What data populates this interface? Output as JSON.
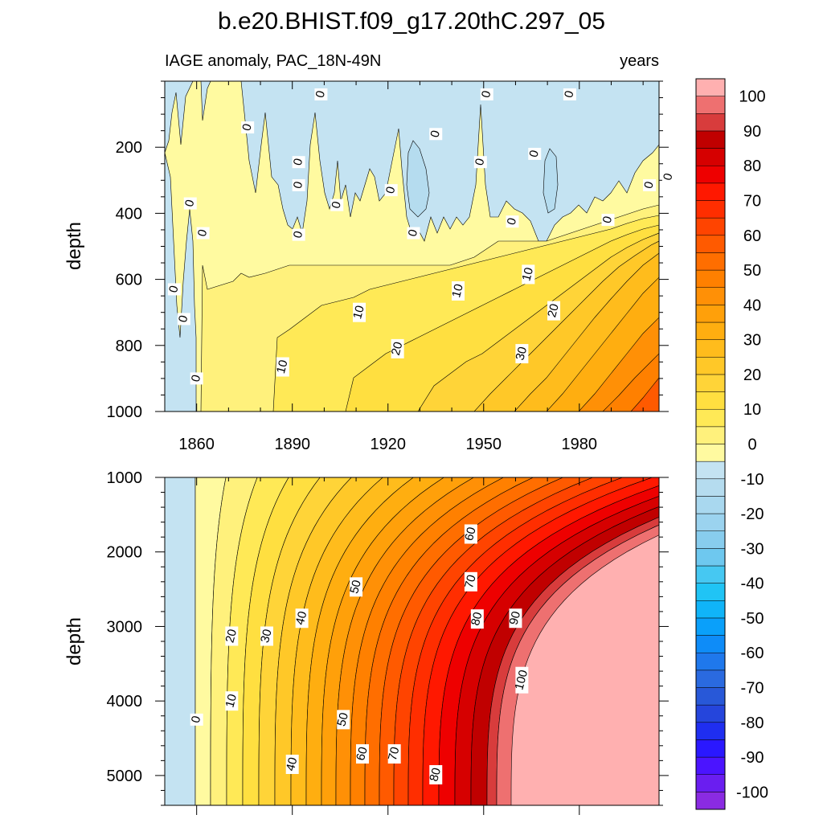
{
  "chart_data": [
    {
      "type": "heatmap",
      "title": "b.e20.BHIST.f09_g17.20thC.297_05",
      "left_subtitle": "IAGE anomaly, PAC_18N-49N",
      "right_subtitle": "years",
      "xlabel": "",
      "ylabel": "depth",
      "x_ticks": [
        1860,
        1890,
        1920,
        1950,
        1980
      ],
      "y_ticks": [
        200,
        400,
        600,
        800,
        1000
      ],
      "xlim": [
        1850,
        2005
      ],
      "ylim": [
        0,
        1000
      ],
      "y_inverted": true,
      "contour_labels": [
        {
          "text": "0",
          "x": 1876,
          "y": 140
        },
        {
          "text": "0",
          "x": 1899,
          "y": 40
        },
        {
          "text": "0",
          "x": 1951,
          "y": 40
        },
        {
          "text": "0",
          "x": 1977,
          "y": 40
        },
        {
          "text": "0",
          "x": 1935,
          "y": 160
        },
        {
          "text": "0",
          "x": 1966,
          "y": 220
        },
        {
          "text": "0",
          "x": 1892,
          "y": 245
        },
        {
          "text": "0",
          "x": 1892,
          "y": 315
        },
        {
          "text": "0",
          "x": 1949,
          "y": 245
        },
        {
          "text": "0",
          "x": 2008,
          "y": 290
        },
        {
          "text": "0",
          "x": 2002,
          "y": 315
        },
        {
          "text": "0",
          "x": 1858,
          "y": 370
        },
        {
          "text": "0",
          "x": 1904,
          "y": 375
        },
        {
          "text": "0",
          "x": 1921,
          "y": 330
        },
        {
          "text": "0",
          "x": 1862,
          "y": 460
        },
        {
          "text": "0",
          "x": 1892,
          "y": 465
        },
        {
          "text": "0",
          "x": 1928,
          "y": 460
        },
        {
          "text": "0",
          "x": 1959,
          "y": 425
        },
        {
          "text": "0",
          "x": 1989,
          "y": 420
        },
        {
          "text": "0",
          "x": 1853,
          "y": 630
        },
        {
          "text": "0",
          "x": 1856,
          "y": 720
        },
        {
          "text": "0",
          "x": 1860,
          "y": 900
        },
        {
          "text": "10",
          "x": 1911,
          "y": 700
        },
        {
          "text": "10",
          "x": 1942,
          "y": 635
        },
        {
          "text": "10",
          "x": 1964,
          "y": 585
        },
        {
          "text": "10",
          "x": 1887,
          "y": 865
        },
        {
          "text": "20",
          "x": 1923,
          "y": 810
        },
        {
          "text": "20",
          "x": 1972,
          "y": 695
        },
        {
          "text": "30",
          "x": 1962,
          "y": 825
        }
      ]
    },
    {
      "type": "heatmap",
      "ylabel": "depth",
      "y_ticks": [
        1000,
        2000,
        3000,
        4000,
        5000
      ],
      "xlim": [
        1850,
        2005
      ],
      "ylim": [
        1000,
        5400
      ],
      "y_inverted": true,
      "contour_labels": [
        {
          "text": "0",
          "x": 1860,
          "y": 4250
        },
        {
          "text": "10",
          "x": 1871,
          "y": 4000
        },
        {
          "text": "20",
          "x": 1871,
          "y": 3130
        },
        {
          "text": "30",
          "x": 1882,
          "y": 3130
        },
        {
          "text": "40",
          "x": 1893,
          "y": 2890
        },
        {
          "text": "50",
          "x": 1910,
          "y": 2470
        },
        {
          "text": "60",
          "x": 1946,
          "y": 1760
        },
        {
          "text": "70",
          "x": 1946,
          "y": 2400
        },
        {
          "text": "80",
          "x": 1948,
          "y": 2900
        },
        {
          "text": "90",
          "x": 1960,
          "y": 2890
        },
        {
          "text": "100",
          "x": 1962,
          "y": 3720
        },
        {
          "text": "50",
          "x": 1906,
          "y": 4250
        },
        {
          "text": "40",
          "x": 1890,
          "y": 4850
        },
        {
          "text": "60",
          "x": 1912,
          "y": 4710
        },
        {
          "text": "70",
          "x": 1922,
          "y": 4710
        },
        {
          "text": "80",
          "x": 1935,
          "y": 4990
        }
      ]
    },
    {
      "type": "colorbar",
      "levels": [
        -100,
        -90,
        -80,
        -70,
        -60,
        -50,
        -40,
        -30,
        -20,
        -10,
        0,
        10,
        20,
        30,
        40,
        50,
        60,
        70,
        80,
        90,
        100
      ],
      "tick_labels": [
        "-100",
        "-90",
        "-80",
        "-70",
        "-60",
        "-50",
        "-40",
        "-30",
        "-20",
        "-10",
        "0",
        "10",
        "20",
        "30",
        "40",
        "50",
        "60",
        "70",
        "80",
        "90",
        "100"
      ],
      "colors_bottom_to_top": [
        "#8a2be2",
        "#6a1ef0",
        "#4b14ff",
        "#2a18ff",
        "#1f2ef0",
        "#2545dc",
        "#2858d8",
        "#2a6ae0",
        "#1f78ec",
        "#0e8cf8",
        "#0aa0fa",
        "#10b4f8",
        "#20c4f5",
        "#46c8f2",
        "#6ec8ef",
        "#88cdee",
        "#9bd3ef",
        "#a9d8ef",
        "#b5dcef",
        "#c4e3f2",
        "#fffaa0",
        "#fff17c",
        "#ffe956",
        "#ffdf40",
        "#ffd438",
        "#ffc828",
        "#ffbc1c",
        "#ffae10",
        "#ffa00a",
        "#ff9006",
        "#ff8000",
        "#ff6e00",
        "#ff5a00",
        "#ff4400",
        "#ff2e00",
        "#ff1800",
        "#ee0000",
        "#d60000",
        "#c00000",
        "#d83c3c",
        "#ee7070",
        "#ffb0b0"
      ]
    }
  ]
}
